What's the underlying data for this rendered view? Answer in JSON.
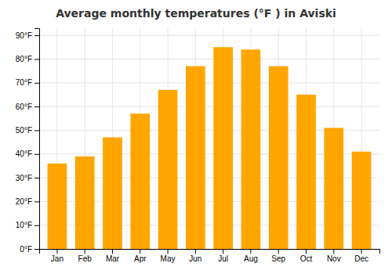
{
  "chart_data": {
    "type": "bar",
    "title": "Average monthly temperatures (°F ) in Aviski",
    "categories": [
      "Jan",
      "Feb",
      "Mar",
      "Apr",
      "May",
      "Jun",
      "Jul",
      "Aug",
      "Sep",
      "Oct",
      "Nov",
      "Dec"
    ],
    "values": [
      36,
      39,
      47,
      57,
      67,
      77,
      85,
      84,
      77,
      65,
      51,
      41
    ],
    "color": "#FFA500",
    "ylim": [
      0,
      93
    ],
    "yticks": [
      {
        "value": 0,
        "label": "0°F"
      },
      {
        "value": 10,
        "label": "10°F"
      },
      {
        "value": 20,
        "label": "20°F"
      },
      {
        "value": 30,
        "label": "30°F"
      },
      {
        "value": 40,
        "label": "40°F"
      },
      {
        "value": 50,
        "label": "50°F"
      },
      {
        "value": 60,
        "label": "60°F"
      },
      {
        "value": 70,
        "label": "70°F"
      },
      {
        "value": 80,
        "label": "80°F"
      },
      {
        "value": 90,
        "label": "90°F"
      }
    ],
    "grid": true
  }
}
